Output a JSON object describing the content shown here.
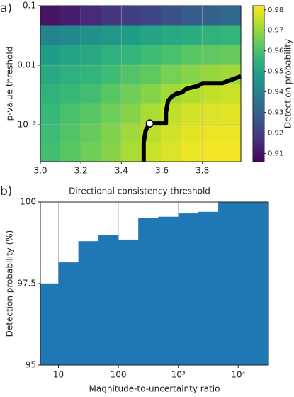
{
  "chart_data": [
    {
      "type": "heatmap",
      "panel_label": "a)",
      "x_label": "Directional consistency threshold",
      "y_label": "p-value threshold",
      "colorbar_label": "Detection probability",
      "colormap": "viridis",
      "xlim": [
        3.0,
        3.99
      ],
      "xticks": [
        3.0,
        3.2,
        3.4,
        3.6,
        3.8
      ],
      "xtick_labels": [
        "3.0",
        "3.2",
        "3.4",
        "3.6",
        "3.8"
      ],
      "ylim": [
        0.00024,
        0.1
      ],
      "y_log": true,
      "yticks": [
        0.1,
        0.01,
        {
          "value": 0.001,
          "label": "10⁻³"
        }
      ],
      "clim": [
        0.906,
        0.982
      ],
      "cticks": [
        0.91,
        0.92,
        0.93,
        0.94,
        0.95,
        0.96,
        0.97,
        0.98
      ],
      "grid": true,
      "values": [
        [
          0.91,
          0.912,
          0.915,
          0.918,
          0.92,
          0.922,
          0.925,
          0.928,
          0.93,
          0.932
        ],
        [
          0.94,
          0.942,
          0.944,
          0.946,
          0.948,
          0.95,
          0.952,
          0.953,
          0.955,
          0.956
        ],
        [
          0.948,
          0.95,
          0.952,
          0.954,
          0.956,
          0.958,
          0.96,
          0.962,
          0.963,
          0.964
        ],
        [
          0.952,
          0.954,
          0.956,
          0.958,
          0.961,
          0.963,
          0.966,
          0.968,
          0.97,
          0.971
        ],
        [
          0.955,
          0.957,
          0.959,
          0.962,
          0.965,
          0.968,
          0.971,
          0.973,
          0.975,
          0.976
        ],
        [
          0.957,
          0.96,
          0.962,
          0.965,
          0.968,
          0.972,
          0.975,
          0.977,
          0.978,
          0.979
        ],
        [
          0.958,
          0.961,
          0.964,
          0.967,
          0.971,
          0.974,
          0.977,
          0.979,
          0.98,
          0.98
        ],
        [
          0.959,
          0.962,
          0.965,
          0.968,
          0.972,
          0.976,
          0.978,
          0.98,
          0.981,
          0.981
        ]
      ],
      "contour": {
        "color": "#000000",
        "x": [
          3.51,
          3.51,
          3.52,
          3.54,
          3.62,
          3.62,
          3.63,
          3.65,
          3.67,
          3.7,
          3.72,
          3.78,
          3.8,
          3.9,
          3.93,
          3.99
        ],
        "y": [
          0.00024,
          0.0005,
          0.0008,
          0.00105,
          0.00105,
          0.0016,
          0.0025,
          0.003,
          0.0033,
          0.0035,
          0.004,
          0.0045,
          0.005,
          0.005,
          0.0055,
          0.0065
        ]
      },
      "marker": {
        "x": 3.54,
        "y": 0.00105,
        "color": "#ffffff"
      }
    },
    {
      "type": "histogram",
      "panel_label": "b)",
      "x_label": "Magnitude-to-uncertainty ratio",
      "y_label": "Detection probability (%)",
      "color": "#1f77b4",
      "x_log": true,
      "bins": [
        5,
        10,
        21.5,
        46.4,
        100,
        215,
        464,
        1000,
        2154,
        4642,
        10000,
        21544,
        32000
      ],
      "values": [
        97.5,
        98.15,
        98.8,
        99.0,
        98.85,
        99.5,
        99.55,
        99.65,
        99.7,
        100,
        100,
        100
      ],
      "xlim": [
        5,
        32000
      ],
      "xticks": [
        10,
        100,
        {
          "value": 1000,
          "label": "10³"
        },
        {
          "value": 10000,
          "label": "10⁴"
        }
      ],
      "ylim": [
        95,
        100
      ],
      "yticks": [
        95,
        97.5,
        100
      ],
      "grid": true
    }
  ]
}
